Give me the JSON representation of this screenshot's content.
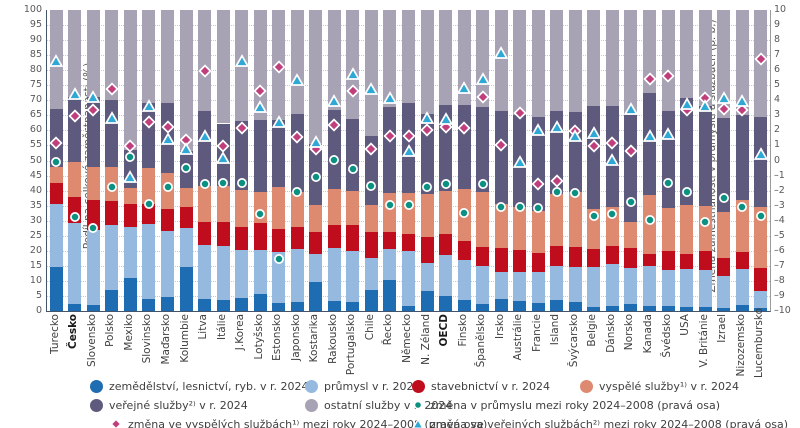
{
  "chart_data": {
    "type": "bar",
    "stacked": true,
    "grid": "dotted-horizontal",
    "left_axis": {
      "label": "Podíl na celkové zaměstnanosti (%)",
      "min": 0,
      "max": 100,
      "step": 5
    },
    "right_axis": {
      "label": "Změna zaměstnanosti v průmyslu a službách (p. b.)",
      "min": -10,
      "max": 10,
      "step": 1
    },
    "categories": [
      "Turecko",
      "Česko",
      "Slovensko",
      "Polsko",
      "Mexiko",
      "Slovinsko",
      "Maďarsko",
      "Kolumbie",
      "Litva",
      "Itálie",
      "J.Korea",
      "Lotyšsko",
      "Estonsko",
      "Japonsko",
      "Kostarika",
      "Rakousko",
      "Portugalsko",
      "Chile",
      "Řecko",
      "Německo",
      "N. Zéland",
      "OECD",
      "Finsko",
      "Španělsko",
      "Irsko",
      "Austrálie",
      "Francie",
      "Island",
      "Švýcarsko",
      "Belgie",
      "Dánsko",
      "Norsko",
      "Kanada",
      "Švédsko",
      "USA",
      "V. Británie",
      "Izrael",
      "Nizozemsko",
      "Lucembursko"
    ],
    "bold_categories": [
      "Česko",
      "OECD"
    ],
    "series": [
      {
        "name": "zemědělství, lesnictví, ryb. v r. 2024",
        "color": "#1e6db2",
        "values": [
          14.5,
          2.4,
          2,
          7,
          11,
          4,
          4.5,
          14.5,
          4,
          3.8,
          4.4,
          5.8,
          2.5,
          3,
          9.8,
          3.3,
          3,
          7,
          10.4,
          1.6,
          6.5,
          5,
          3.8,
          2.2,
          4,
          3.3,
          2.5,
          3.5,
          3,
          1.3,
          1.8,
          2.2,
          1.8,
          1.7,
          1.5,
          1.2,
          1,
          2,
          1
        ]
      },
      {
        "name": "průmysl v r. 2024",
        "color": "#96b9e0",
        "values": [
          21,
          27,
          25,
          21.5,
          17,
          25,
          22,
          13,
          18,
          17.7,
          16,
          14.6,
          17.2,
          17.6,
          9,
          17.6,
          16.9,
          10.6,
          10.2,
          18.2,
          9.3,
          13.6,
          13.2,
          12.8,
          9,
          9.8,
          10.4,
          11.5,
          11.5,
          13.2,
          13.9,
          12.1,
          13.3,
          12,
          12.5,
          12.3,
          10.5,
          12,
          5.6
        ]
      },
      {
        "name": "stavebnictví v r. 2024",
        "color": "#c00d1d",
        "values": [
          7,
          8.5,
          10,
          8,
          7.5,
          6.5,
          7.5,
          7,
          7.5,
          8,
          7.5,
          9,
          7.6,
          7.3,
          7.6,
          7.6,
          8.8,
          8.8,
          5.7,
          5.7,
          8.7,
          7,
          6.4,
          6.4,
          7.8,
          7.3,
          6.4,
          6.5,
          6.8,
          6.1,
          5.9,
          6.5,
          3.8,
          6.3,
          5,
          6.5,
          6,
          5.5,
          7.6
        ]
      },
      {
        "name": "vyspělé služby¹⁾ v r. 2024",
        "color": "#dd8a70",
        "values": [
          5.5,
          11.6,
          11,
          11.5,
          5.5,
          12,
          12,
          6.5,
          12,
          12.1,
          12.3,
          10.2,
          13.8,
          11.7,
          8.9,
          11.9,
          11.3,
          8.9,
          12.8,
          13.8,
          14.5,
          14.4,
          17.2,
          18,
          14.7,
          14.2,
          14,
          17.5,
          18.2,
          13.2,
          12.9,
          8.7,
          19.5,
          14.3,
          16.1,
          14.8,
          15.3,
          17.5,
          20.3
        ]
      },
      {
        "name": "veřejné služby²⁾  v r. 2024",
        "color": "#5e5a7d",
        "values": [
          19,
          21.5,
          23,
          22,
          12.5,
          21.5,
          23,
          12,
          25,
          20.7,
          23,
          24,
          22.4,
          26,
          20.3,
          26.4,
          23.8,
          22.7,
          28.6,
          29.8,
          26.5,
          28.5,
          27.9,
          28.5,
          31,
          30.4,
          31.3,
          27.5,
          26.7,
          34.4,
          33.7,
          35.5,
          34,
          32.3,
          35.6,
          33.4,
          31.3,
          28,
          30
        ]
      },
      {
        "name": "ostatní služby v r. 2024",
        "color": "#a8a3b4",
        "values": [
          33,
          29,
          29,
          30,
          46.5,
          31,
          31,
          47,
          33.5,
          37.7,
          36.8,
          36.4,
          36.5,
          34.4,
          44.4,
          33.2,
          36.2,
          42,
          32.3,
          30.9,
          34.5,
          31.5,
          31.5,
          32.1,
          33.5,
          35,
          35.4,
          33.5,
          33.8,
          31.8,
          31.8,
          35,
          27.6,
          33.4,
          29.3,
          31.8,
          35.9,
          35,
          35.5
        ]
      }
    ],
    "markers": [
      {
        "name": "změna v průmyslu mezi roky 2024–2008 (pravá osa)",
        "shape": "circle",
        "color": "#0a9181",
        "axis": "right",
        "values": [
          0,
          -3.7,
          -4.4,
          -1.7,
          0.3,
          -2.8,
          -1.7,
          -0.4,
          -1.5,
          -1.4,
          -1.4,
          -3.5,
          -6.5,
          -2,
          -1,
          0.1,
          -0.5,
          -1.6,
          -2.9,
          -2.9,
          -1.7,
          -1.5,
          -3.4,
          -1.5,
          -3,
          -3,
          -3.1,
          -2,
          -2.1,
          -3.6,
          -3.5,
          -2.7,
          -3.9,
          -1.4,
          -2,
          -4,
          -2.4,
          -3,
          -3.6
        ]
      },
      {
        "name": "změna ve vyspělých službách¹⁾ mezi roky 2024–2008 (pravá osa)",
        "shape": "diamond",
        "color": "#c13e7c",
        "axis": "right",
        "values": [
          1.2,
          3,
          3.4,
          4.8,
          1,
          2.6,
          2.3,
          1.4,
          6,
          1,
          2.2,
          4.7,
          6.3,
          1.6,
          0.8,
          2.4,
          4.7,
          0.8,
          1.7,
          1.7,
          2.1,
          2.3,
          2.2,
          4.3,
          1.1,
          3.2,
          -1.5,
          -1.3,
          2,
          1,
          1.2,
          0.7,
          5.5,
          5.7,
          3.4,
          4.2,
          3.5,
          3.4,
          6.8
        ]
      },
      {
        "name": "změna ve veřejných službách²⁾ mezi roky 2024–2008 (pravá osa)",
        "shape": "triangle",
        "color": "#2fa8d5",
        "axis": "right",
        "values": [
          6.7,
          4.5,
          4.3,
          2.9,
          -1,
          3.7,
          1.5,
          0.8,
          1.7,
          0.2,
          6.7,
          3.6,
          2.6,
          5.4,
          1.3,
          4,
          5.8,
          4.8,
          4.2,
          0.7,
          2.9,
          2.8,
          4.9,
          5.5,
          7.2,
          0,
          2.1,
          2.3,
          1.7,
          1.9,
          0.1,
          3.5,
          1.7,
          1.8,
          3.8,
          3.7,
          4.2,
          4,
          0.5
        ]
      }
    ]
  }
}
